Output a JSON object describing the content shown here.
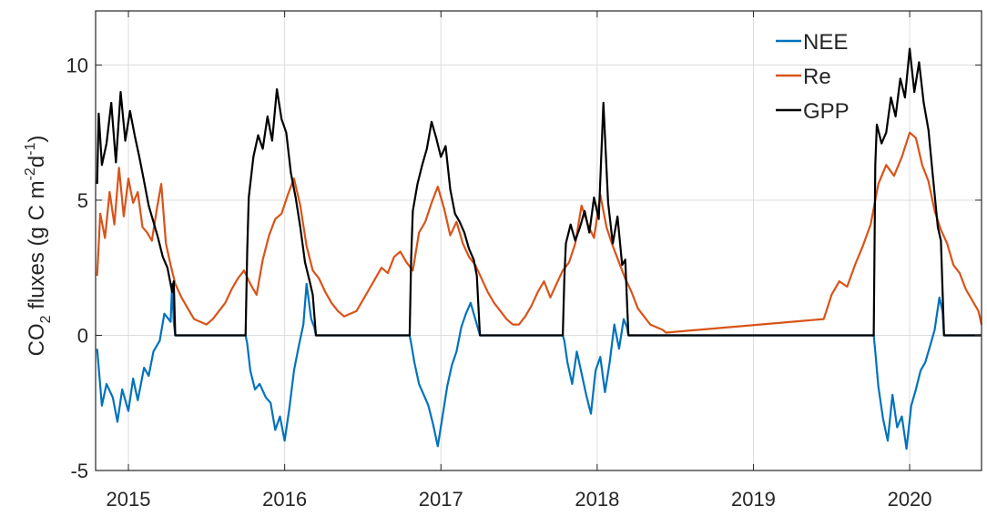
{
  "chart_data": {
    "type": "line",
    "title": "",
    "xlabel": "",
    "ylabel": "CO2 fluxes (g C m-2 d-1)",
    "ylabel_parts": {
      "base": "CO",
      "sub": "2",
      "middle": " fluxes (g C m",
      "sup1": "-2",
      "middle2": "d",
      "sup2": "-1",
      "end": ")"
    },
    "xlim": [
      2014.79,
      2020.46
    ],
    "ylim": [
      -5,
      12
    ],
    "xticks": [
      2015,
      2016,
      2017,
      2018,
      2019,
      2020
    ],
    "xtick_labels": [
      "2015",
      "2016",
      "2017",
      "2018",
      "2019",
      "2020"
    ],
    "yticks": [
      -5,
      0,
      5,
      10
    ],
    "ytick_labels": [
      "-5",
      "0",
      "5",
      "10"
    ],
    "grid": true,
    "legend_position": "top-right",
    "series": [
      {
        "name": "NEE",
        "color": "#0072BD",
        "x": [
          2014.8,
          2014.83,
          2014.86,
          2014.9,
          2014.93,
          2014.96,
          2015.0,
          2015.03,
          2015.06,
          2015.1,
          2015.13,
          2015.16,
          2015.2,
          2015.23,
          2015.27,
          2015.28,
          2015.29,
          2015.3,
          2015.75,
          2015.76,
          2015.78,
          2015.81,
          2015.84,
          2015.88,
          2015.91,
          2015.94,
          2015.97,
          2016.0,
          2016.03,
          2016.06,
          2016.09,
          2016.12,
          2016.14,
          2016.17,
          2016.19,
          2016.2,
          2016.8,
          2016.81,
          2016.83,
          2016.86,
          2016.89,
          2016.92,
          2016.95,
          2016.98,
          2017.01,
          2017.04,
          2017.07,
          2017.1,
          2017.13,
          2017.16,
          2017.19,
          2017.22,
          2017.24,
          2017.25,
          2017.78,
          2017.79,
          2017.81,
          2017.84,
          2017.87,
          2017.9,
          2017.93,
          2017.96,
          2017.99,
          2018.02,
          2018.05,
          2018.08,
          2018.11,
          2018.14,
          2018.17,
          2018.19,
          2018.2,
          2019.77,
          2019.78,
          2019.8,
          2019.83,
          2019.86,
          2019.89,
          2019.92,
          2019.95,
          2019.98,
          2020.01,
          2020.04,
          2020.07,
          2020.1,
          2020.13,
          2020.16,
          2020.19,
          2020.21,
          2020.22,
          2020.46
        ],
        "y": [
          -0.5,
          -2.6,
          -1.8,
          -2.3,
          -3.2,
          -2.0,
          -2.8,
          -1.6,
          -2.4,
          -1.2,
          -1.5,
          -0.6,
          -0.2,
          0.8,
          0.5,
          1.9,
          0.5,
          0,
          0,
          -0.3,
          -1.3,
          -2.0,
          -1.8,
          -2.3,
          -2.5,
          -3.5,
          -3.0,
          -3.9,
          -2.7,
          -1.3,
          -0.4,
          0.4,
          1.9,
          0.6,
          0.3,
          0,
          0,
          -0.3,
          -1.0,
          -1.8,
          -2.2,
          -2.6,
          -3.3,
          -4.1,
          -3.0,
          -1.9,
          -1.1,
          -0.6,
          0.3,
          0.8,
          1.2,
          0.6,
          0.2,
          0,
          0,
          -0.2,
          -1.0,
          -1.8,
          -0.6,
          -1.4,
          -2.2,
          -2.9,
          -1.3,
          -0.8,
          -2.1,
          -1.0,
          0.4,
          -0.5,
          0.6,
          0.3,
          0,
          0,
          -0.6,
          -1.9,
          -3.1,
          -3.9,
          -2.2,
          -3.4,
          -3.0,
          -4.2,
          -2.6,
          -2.0,
          -1.3,
          -1.0,
          -0.4,
          0.2,
          1.4,
          0.9,
          0,
          0
        ]
      },
      {
        "name": "Re",
        "color": "#D95319",
        "x": [
          2014.8,
          2014.82,
          2014.85,
          2014.88,
          2014.91,
          2014.94,
          2014.97,
          2015.0,
          2015.03,
          2015.06,
          2015.09,
          2015.12,
          2015.15,
          2015.18,
          2015.21,
          2015.24,
          2015.27,
          2015.3,
          2015.34,
          2015.38,
          2015.42,
          2015.46,
          2015.5,
          2015.54,
          2015.58,
          2015.62,
          2015.66,
          2015.7,
          2015.74,
          2015.78,
          2015.82,
          2015.86,
          2015.9,
          2015.94,
          2015.98,
          2016.02,
          2016.06,
          2016.1,
          2016.14,
          2016.18,
          2016.22,
          2016.26,
          2016.3,
          2016.34,
          2016.38,
          2016.42,
          2016.46,
          2016.5,
          2016.54,
          2016.58,
          2016.62,
          2016.66,
          2016.7,
          2016.74,
          2016.78,
          2016.82,
          2016.86,
          2016.9,
          2016.94,
          2016.98,
          2017.02,
          2017.06,
          2017.1,
          2017.14,
          2017.18,
          2017.22,
          2017.26,
          2017.3,
          2017.34,
          2017.38,
          2017.42,
          2017.46,
          2017.5,
          2017.54,
          2017.58,
          2017.62,
          2017.66,
          2017.7,
          2017.74,
          2017.78,
          2017.82,
          2017.86,
          2017.9,
          2017.94,
          2017.98,
          2018.02,
          2018.06,
          2018.1,
          2018.14,
          2018.18,
          2018.22,
          2018.26,
          2018.3,
          2018.34,
          2018.38,
          2018.42,
          2018.44,
          2019.45,
          2019.5,
          2019.55,
          2019.6,
          2019.65,
          2019.7,
          2019.75,
          2019.8,
          2019.85,
          2019.9,
          2019.95,
          2020.0,
          2020.04,
          2020.08,
          2020.12,
          2020.16,
          2020.2,
          2020.24,
          2020.28,
          2020.32,
          2020.36,
          2020.4,
          2020.44,
          2020.46
        ],
        "y": [
          2.2,
          4.5,
          3.6,
          5.3,
          4.1,
          6.2,
          4.4,
          5.8,
          4.9,
          5.3,
          4.0,
          3.8,
          3.5,
          4.6,
          5.6,
          3.4,
          2.6,
          1.9,
          1.4,
          1.0,
          0.6,
          0.5,
          0.4,
          0.6,
          0.9,
          1.2,
          1.7,
          2.1,
          2.4,
          1.9,
          1.5,
          2.8,
          3.7,
          4.3,
          4.5,
          5.2,
          5.8,
          4.8,
          3.3,
          2.4,
          2.1,
          1.6,
          1.2,
          0.9,
          0.7,
          0.8,
          0.9,
          1.3,
          1.7,
          2.1,
          2.5,
          2.3,
          2.9,
          3.1,
          2.7,
          2.4,
          3.8,
          4.2,
          4.9,
          5.5,
          4.7,
          3.7,
          4.2,
          3.4,
          2.9,
          2.6,
          2.1,
          1.6,
          1.2,
          0.9,
          0.6,
          0.4,
          0.4,
          0.7,
          1.1,
          1.6,
          2.0,
          1.4,
          1.9,
          2.4,
          2.7,
          3.4,
          4.8,
          4.1,
          3.6,
          5.2,
          4.0,
          3.3,
          2.7,
          2.1,
          1.6,
          1.0,
          0.7,
          0.4,
          0.3,
          0.2,
          0.1,
          0.6,
          1.5,
          2.0,
          1.8,
          2.6,
          3.3,
          4.1,
          5.6,
          6.3,
          5.9,
          6.6,
          7.5,
          7.3,
          6.3,
          5.7,
          4.6,
          3.9,
          3.4,
          2.6,
          2.3,
          1.7,
          1.3,
          0.9,
          0.4
        ]
      },
      {
        "name": "GPP",
        "color": "#000000",
        "x": [
          2014.8,
          2014.81,
          2014.83,
          2014.86,
          2014.89,
          2014.92,
          2014.95,
          2014.98,
          2015.01,
          2015.04,
          2015.07,
          2015.1,
          2015.13,
          2015.16,
          2015.19,
          2015.22,
          2015.25,
          2015.28,
          2015.29,
          2015.3,
          2015.75,
          2015.76,
          2015.77,
          2015.8,
          2015.83,
          2015.86,
          2015.89,
          2015.92,
          2015.95,
          2015.98,
          2016.01,
          2016.04,
          2016.07,
          2016.1,
          2016.13,
          2016.16,
          2016.18,
          2016.2,
          2016.8,
          2016.81,
          2016.82,
          2016.85,
          2016.88,
          2016.91,
          2016.94,
          2016.97,
          2017.0,
          2017.03,
          2017.06,
          2017.09,
          2017.12,
          2017.15,
          2017.18,
          2017.21,
          2017.23,
          2017.25,
          2017.78,
          2017.79,
          2017.8,
          2017.83,
          2017.86,
          2017.89,
          2017.92,
          2017.95,
          2017.98,
          2018.01,
          2018.04,
          2018.07,
          2018.1,
          2018.13,
          2018.16,
          2018.18,
          2018.2,
          2019.77,
          2019.78,
          2019.79,
          2019.82,
          2019.85,
          2019.88,
          2019.91,
          2019.94,
          2019.97,
          2020.0,
          2020.03,
          2020.06,
          2020.09,
          2020.12,
          2020.15,
          2020.18,
          2020.2,
          2020.22,
          2020.46
        ],
        "y": [
          5.6,
          8.2,
          6.3,
          7.1,
          8.6,
          6.4,
          9.0,
          7.2,
          8.3,
          7.4,
          6.6,
          5.7,
          4.8,
          4.2,
          3.6,
          2.9,
          2.5,
          1.6,
          2.0,
          0,
          0,
          3.1,
          5.1,
          6.6,
          7.4,
          6.9,
          8.1,
          7.2,
          9.1,
          8.0,
          7.5,
          6.0,
          5.1,
          4.0,
          2.7,
          2.0,
          1.5,
          0,
          0,
          2.9,
          4.6,
          5.6,
          6.3,
          6.9,
          7.9,
          7.3,
          6.6,
          7.0,
          5.4,
          4.5,
          4.2,
          3.8,
          3.2,
          2.8,
          2.2,
          0,
          0,
          2.1,
          3.4,
          4.1,
          3.5,
          4.0,
          4.6,
          3.8,
          5.1,
          4.3,
          8.6,
          4.9,
          3.4,
          4.4,
          2.6,
          2.8,
          0,
          0,
          6.3,
          7.8,
          7.1,
          7.5,
          8.8,
          8.1,
          9.5,
          8.8,
          10.6,
          9.0,
          10.1,
          8.6,
          7.6,
          5.8,
          4.0,
          3.5,
          0,
          0
        ]
      }
    ]
  }
}
